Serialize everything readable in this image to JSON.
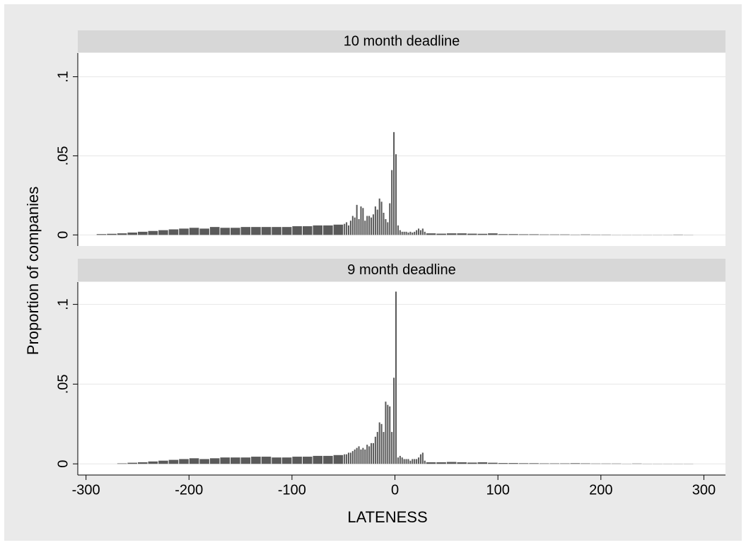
{
  "chart_data": [
    {
      "type": "histogram",
      "title": "10 month deadline",
      "ylabel": "Proportion of companies",
      "bins": [
        -290,
        -280,
        -270,
        -260,
        -250,
        -240,
        -230,
        -220,
        -210,
        -200,
        -190,
        -180,
        -170,
        -160,
        -150,
        -140,
        -130,
        -120,
        -110,
        -100,
        -90,
        -80,
        -70,
        -60,
        -50,
        -48,
        -46,
        -44,
        -42,
        -40,
        -38,
        -36,
        -34,
        -32,
        -30,
        -28,
        -26,
        -24,
        -22,
        -20,
        -18,
        -16,
        -14,
        -12,
        -10,
        -8,
        -6,
        -4,
        -2,
        0,
        2,
        4,
        6,
        8,
        10,
        12,
        14,
        16,
        18,
        20,
        22,
        24,
        26,
        28,
        30,
        40,
        50,
        60,
        70,
        80,
        90,
        100,
        110,
        120,
        130,
        140,
        150,
        160,
        170,
        180,
        190,
        200,
        210,
        220,
        230,
        240,
        250,
        260,
        270,
        280,
        290
      ],
      "values": [
        0.0005,
        0.0007,
        0.001,
        0.0015,
        0.002,
        0.0025,
        0.003,
        0.0035,
        0.004,
        0.0045,
        0.004,
        0.005,
        0.0045,
        0.0045,
        0.005,
        0.005,
        0.005,
        0.005,
        0.005,
        0.0055,
        0.0055,
        0.006,
        0.006,
        0.0065,
        0.007,
        0.008,
        0.006,
        0.009,
        0.012,
        0.011,
        0.019,
        0.01,
        0.018,
        0.017,
        0.009,
        0.012,
        0.012,
        0.011,
        0.013,
        0.018,
        0.016,
        0.023,
        0.021,
        0.014,
        0.01,
        0.008,
        0.02,
        0.041,
        0.065,
        0.051,
        0.006,
        0.003,
        0.002,
        0.002,
        0.002,
        0.0015,
        0.002,
        0.0015,
        0.002,
        0.003,
        0.004,
        0.003,
        0.004,
        0.002,
        0.001,
        0.0008,
        0.001,
        0.001,
        0.0008,
        0.0007,
        0.001,
        0.0005,
        0.0005,
        0.0004,
        0.0004,
        0.0003,
        0.0003,
        0.0003,
        0.0002,
        0.0003,
        0.0002,
        0.0002,
        0.0001,
        0.0001,
        0.0001,
        0.0001,
        0.0001,
        0.0001,
        0.0002,
        0.0001
      ],
      "color": "#5a5a5a",
      "xlim": [
        -308,
        321
      ],
      "ylim": [
        -0.007,
        0.115
      ],
      "yticks": [
        0,
        {
          "value": 0.05,
          "label": ".05"
        },
        {
          "value": 0.1,
          "label": ".1"
        }
      ],
      "grid": true
    },
    {
      "type": "histogram",
      "title": "9 month deadline",
      "xlabel": "LATENESS",
      "bins": [
        -290,
        -280,
        -270,
        -260,
        -250,
        -240,
        -230,
        -220,
        -210,
        -200,
        -190,
        -180,
        -170,
        -160,
        -150,
        -140,
        -130,
        -120,
        -110,
        -100,
        -90,
        -80,
        -70,
        -60,
        -50,
        -48,
        -46,
        -44,
        -42,
        -40,
        -38,
        -36,
        -34,
        -32,
        -30,
        -28,
        -26,
        -24,
        -22,
        -20,
        -18,
        -16,
        -14,
        -12,
        -10,
        -8,
        -6,
        -4,
        -2,
        0,
        2,
        4,
        6,
        8,
        10,
        12,
        14,
        16,
        18,
        20,
        22,
        24,
        26,
        28,
        30,
        40,
        50,
        60,
        70,
        80,
        90,
        100,
        110,
        120,
        130,
        140,
        150,
        160,
        170,
        180,
        190,
        200,
        210,
        220,
        230,
        240,
        250,
        260,
        270,
        280,
        290
      ],
      "values": [
        0,
        0,
        0.0003,
        0.0007,
        0.001,
        0.0015,
        0.002,
        0.0025,
        0.003,
        0.0035,
        0.003,
        0.0035,
        0.004,
        0.004,
        0.004,
        0.0045,
        0.0045,
        0.004,
        0.004,
        0.0045,
        0.0045,
        0.005,
        0.005,
        0.0055,
        0.006,
        0.006,
        0.007,
        0.007,
        0.008,
        0.009,
        0.01,
        0.011,
        0.009,
        0.01,
        0.009,
        0.012,
        0.011,
        0.013,
        0.013,
        0.017,
        0.02,
        0.026,
        0.025,
        0.02,
        0.039,
        0.037,
        0.036,
        0.02,
        0.054,
        0.108,
        0.004,
        0.005,
        0.004,
        0.003,
        0.003,
        0.003,
        0.002,
        0.003,
        0.003,
        0.003,
        0.004,
        0.006,
        0.007,
        0.002,
        0.001,
        0.001,
        0.0012,
        0.001,
        0.0008,
        0.001,
        0.0007,
        0.0005,
        0.0005,
        0.0004,
        0.0004,
        0.0003,
        0.0003,
        0.0003,
        0.0004,
        0.0003,
        0.0002,
        0.0002,
        0.0002,
        0.0001,
        0.0002,
        0.0001,
        0.0001,
        0.0001,
        0.0001,
        0.0001
      ],
      "color": "#5a5a5a",
      "xlim": [
        -308,
        321
      ],
      "ylim": [
        -0.007,
        0.114
      ],
      "xticks": [
        -300,
        -200,
        -100,
        0,
        100,
        200,
        300
      ],
      "yticks": [
        0,
        {
          "value": 0.05,
          "label": ".05"
        },
        {
          "value": 0.1,
          "label": ".1"
        }
      ],
      "grid": true
    }
  ]
}
